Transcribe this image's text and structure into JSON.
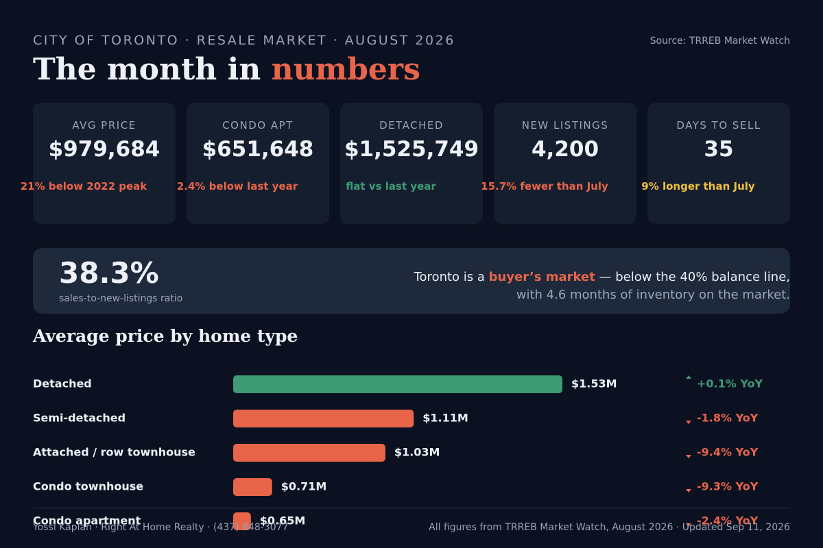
{
  "header": {
    "kicker": "CITY OF TORONTO · RESALE MARKET · AUGUST 2026",
    "title_prefix": "The month in",
    "title_highlight": "numbers",
    "source": "Source: TRREB Market Watch"
  },
  "kpis": [
    {
      "label": "AVG PRICE",
      "value": "$979,684",
      "note": "21% below 2022 peak",
      "tone": "#e8654a"
    },
    {
      "label": "CONDO APT",
      "value": "$651,648",
      "note": "2.4% below last year",
      "tone": "#e8654a"
    },
    {
      "label": "DETACHED",
      "value": "$1,525,749",
      "note": "flat vs last year",
      "tone": "#3f9a76"
    },
    {
      "label": "NEW LISTINGS",
      "value": "4,200",
      "note": "15.7% fewer than July",
      "tone": "#e8654a"
    },
    {
      "label": "DAYS TO SELL",
      "value": "35",
      "note": "9% longer than July",
      "tone": "#f0c040"
    }
  ],
  "banner": {
    "ratio": "38.3%",
    "ratio_caption": "sales-to-new-listings ratio",
    "line1_before": "Toronto is a ",
    "line1_highlight": "buyer’s market",
    "line1_after": " — below the 40% balance line,",
    "line2": "with 4.6 months of inventory on the market."
  },
  "price_chart": {
    "title": "Average price by home type",
    "categories": [
      "Detached",
      "Semi-detached",
      "Attached / row townhouse",
      "Condo townhouse",
      "Condo apartment"
    ],
    "values": [
      1.53,
      1.11,
      1.03,
      0.71,
      0.65
    ],
    "value_labels": [
      "$1.53M",
      "$1.11M",
      "$1.03M",
      "$0.71M",
      "$0.65M"
    ],
    "changes": [
      "+0.1% YoY",
      "-1.8% YoY",
      "-9.4% YoY",
      "-9.3% YoY",
      "-2.4% YoY"
    ],
    "colors": [
      "#3f9a76",
      "#e8654a",
      "#e8654a",
      "#e8654a",
      "#e8654a"
    ],
    "xlim": [
      0.6,
      1.53
    ]
  },
  "footer": {
    "left": "Yossi Kaplan · Right At Home Realty · (437) 848-3077",
    "right": "All figures from TRREB Market Watch, August 2026 · Updated Sep 11, 2026"
  }
}
